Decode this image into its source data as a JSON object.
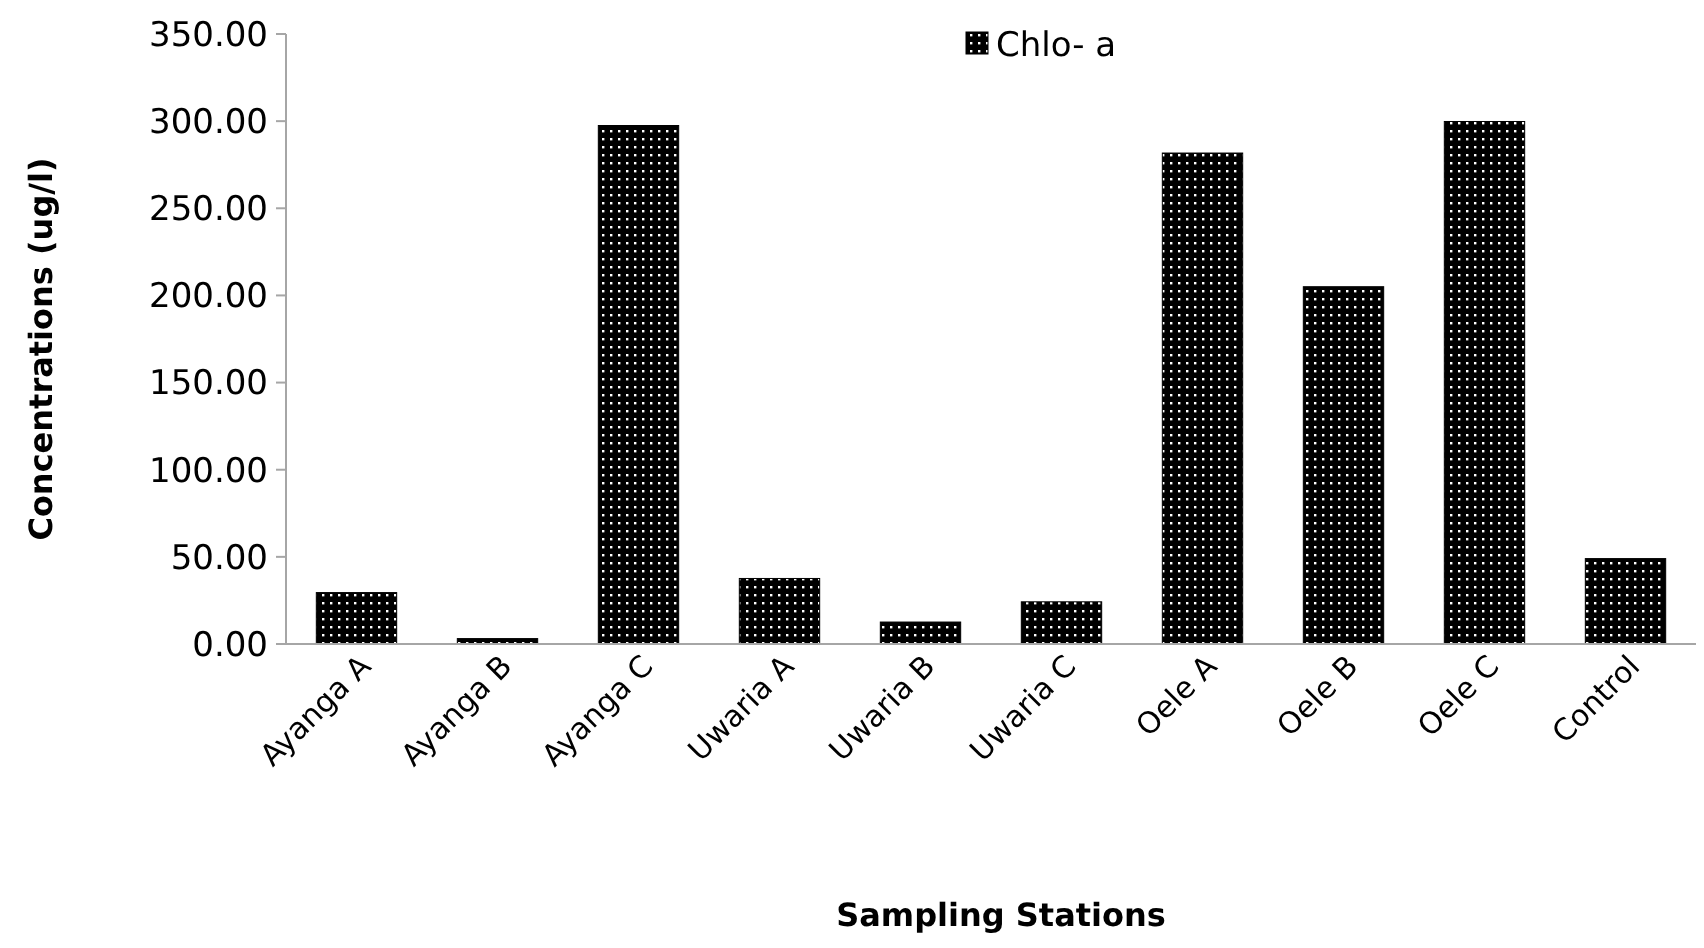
{
  "chart_data": {
    "type": "bar",
    "xlabel": "Sampling Stations",
    "ylabel": "Concentrations (ug/l)",
    "categories": [
      "Ayanga A",
      "Ayanga B",
      "Ayanga C",
      "Uwaria A",
      "Uwaria B",
      "Uwaria C",
      "Oele A",
      "Oele B",
      "Oele C",
      "Control"
    ],
    "series": [
      {
        "name": "Chlo- a",
        "color": "#000000",
        "values": [
          29.5,
          3.1,
          297.5,
          37.6,
          12.6,
          24.2,
          281.7,
          205,
          299.8,
          49
        ]
      }
    ],
    "ylim": [
      0,
      350
    ],
    "yticks": [
      {
        "value": 0,
        "label": "0.00"
      },
      {
        "value": 50,
        "label": "50.00"
      },
      {
        "value": 100,
        "label": "100.00"
      },
      {
        "value": 150,
        "label": "150.00"
      },
      {
        "value": 200,
        "label": "200.00"
      },
      {
        "value": 250,
        "label": "250.00"
      },
      {
        "value": 300,
        "label": "300.00"
      },
      {
        "value": 350,
        "label": "350.00"
      }
    ],
    "legend": "top",
    "grid": false
  }
}
